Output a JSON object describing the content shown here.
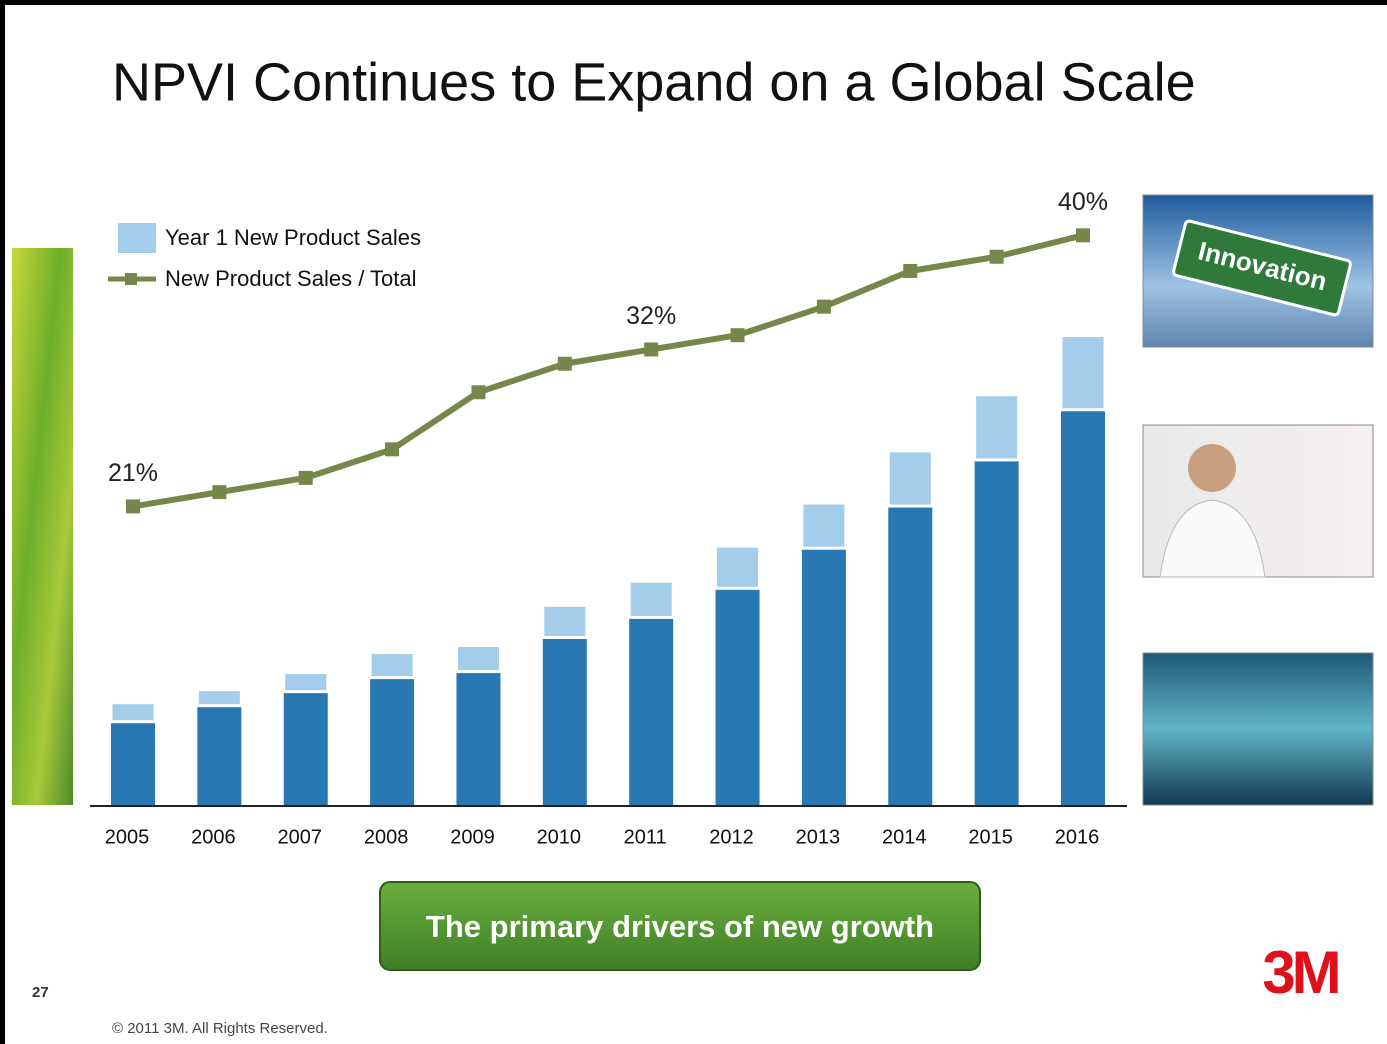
{
  "title": "NPVI Continues to Expand on a Global Scale",
  "chart_data": {
    "type": "bar",
    "categories": [
      "2005",
      "2006",
      "2007",
      "2008",
      "2009",
      "2010",
      "2011",
      "2012",
      "2013",
      "2014",
      "2015",
      "2016"
    ],
    "series": [
      {
        "color": "#2878b4",
        "values": [
          84,
          100,
          114,
          128,
          134,
          168,
          188,
          217,
          257,
          299,
          345,
          395
        ]
      },
      {
        "name": "Year 1 New Product Sales",
        "color": "#a3cdea",
        "values": [
          19,
          16,
          19,
          25,
          26,
          32,
          36,
          42,
          45,
          55,
          65,
          74
        ]
      },
      {
        "name": "New Product Sales / Total",
        "type": "line",
        "axis": "y2",
        "color": "#77864a",
        "values": [
          21,
          22,
          23,
          25,
          29,
          31,
          32,
          33,
          35,
          37.5,
          38.5,
          40
        ],
        "value_labels": [
          "21%",
          null,
          null,
          null,
          null,
          null,
          "32%",
          null,
          null,
          null,
          null,
          "40%"
        ]
      }
    ],
    "ylim": [
      0,
      640
    ],
    "y2lim": [
      0,
      45
    ],
    "legend": "upper-left"
  },
  "callout": "The primary drivers of new growth",
  "image_sign": "Innovation",
  "page_number": "27",
  "footer": "© 2011 3M. All Rights Reserved.",
  "logo": "3M"
}
